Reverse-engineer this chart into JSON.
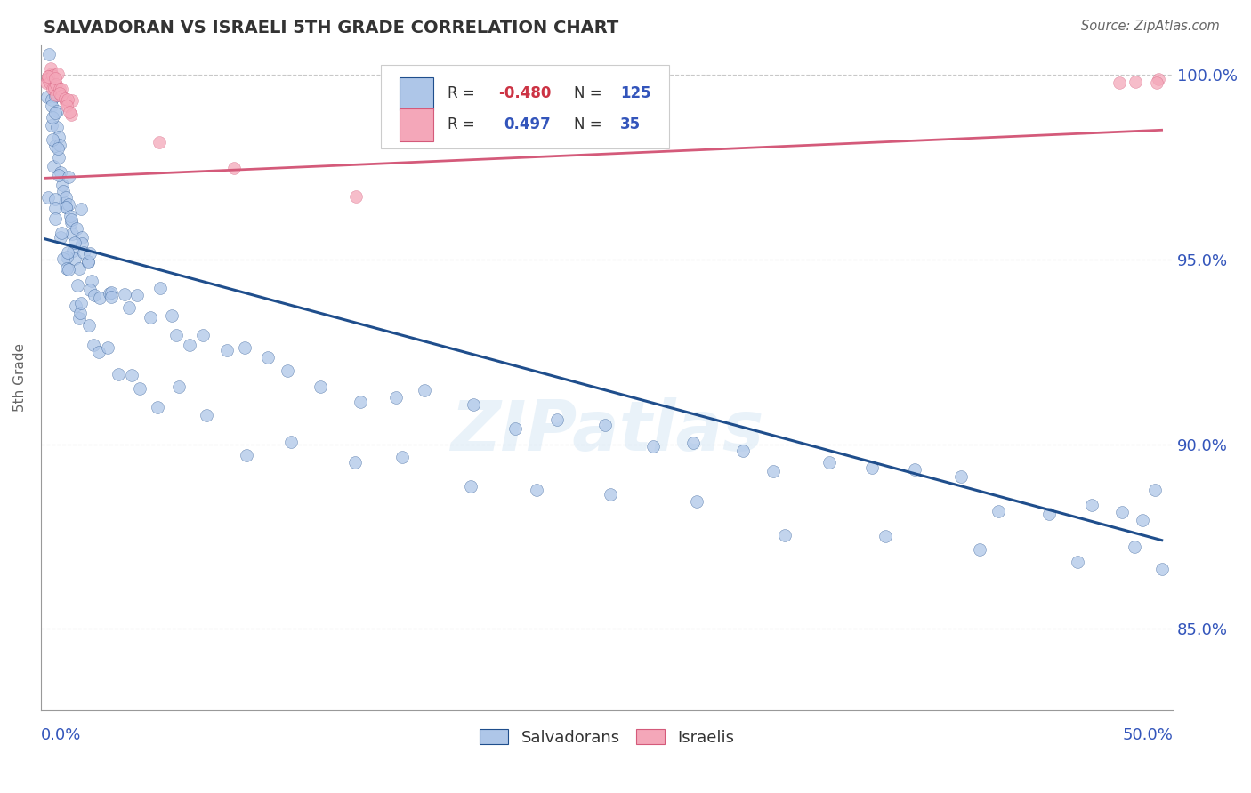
{
  "title": "SALVADORAN VS ISRAELI 5TH GRADE CORRELATION CHART",
  "source": "Source: ZipAtlas.com",
  "ylabel": "5th Grade",
  "ylim": [
    0.828,
    1.008
  ],
  "xlim": [
    -0.002,
    0.505
  ],
  "yticks": [
    0.85,
    0.9,
    0.95,
    1.0
  ],
  "ytick_labels": [
    "85.0%",
    "90.0%",
    "95.0%",
    "100.0%"
  ],
  "blue_color": "#aec6e8",
  "pink_color": "#f4a7b9",
  "blue_line_color": "#1f4e8c",
  "pink_line_color": "#d45a7a",
  "blue_trend_x": [
    0.0,
    0.5
  ],
  "blue_trend_y": [
    0.9555,
    0.874
  ],
  "pink_trend_x": [
    0.0,
    0.5
  ],
  "pink_trend_y": [
    0.972,
    0.985
  ],
  "blue_scatter_x": [
    0.001,
    0.001,
    0.002,
    0.002,
    0.003,
    0.003,
    0.003,
    0.004,
    0.004,
    0.005,
    0.005,
    0.005,
    0.006,
    0.006,
    0.006,
    0.007,
    0.007,
    0.007,
    0.008,
    0.008,
    0.008,
    0.009,
    0.009,
    0.01,
    0.01,
    0.01,
    0.011,
    0.011,
    0.012,
    0.012,
    0.013,
    0.013,
    0.014,
    0.014,
    0.015,
    0.015,
    0.016,
    0.016,
    0.017,
    0.017,
    0.018,
    0.019,
    0.02,
    0.021,
    0.022,
    0.023,
    0.025,
    0.027,
    0.029,
    0.032,
    0.035,
    0.038,
    0.042,
    0.046,
    0.05,
    0.055,
    0.06,
    0.065,
    0.07,
    0.08,
    0.09,
    0.1,
    0.11,
    0.125,
    0.14,
    0.155,
    0.17,
    0.19,
    0.21,
    0.23,
    0.25,
    0.27,
    0.29,
    0.31,
    0.33,
    0.35,
    0.37,
    0.39,
    0.41,
    0.43,
    0.45,
    0.468,
    0.48,
    0.492,
    0.498,
    0.002,
    0.003,
    0.004,
    0.005,
    0.006,
    0.007,
    0.008,
    0.009,
    0.01,
    0.011,
    0.012,
    0.013,
    0.014,
    0.015,
    0.016,
    0.018,
    0.02,
    0.022,
    0.025,
    0.028,
    0.032,
    0.036,
    0.042,
    0.05,
    0.06,
    0.075,
    0.09,
    0.11,
    0.135,
    0.16,
    0.19,
    0.22,
    0.255,
    0.29,
    0.33,
    0.375,
    0.42,
    0.46,
    0.49,
    0.5
  ],
  "blue_scatter_y": [
    0.999,
    0.997,
    0.995,
    0.994,
    0.993,
    0.991,
    0.99,
    0.989,
    0.987,
    0.986,
    0.985,
    0.983,
    0.982,
    0.98,
    0.979,
    0.977,
    0.976,
    0.975,
    0.973,
    0.972,
    0.97,
    0.969,
    0.968,
    0.967,
    0.966,
    0.964,
    0.963,
    0.962,
    0.961,
    0.96,
    0.959,
    0.958,
    0.957,
    0.956,
    0.954,
    0.953,
    0.952,
    0.951,
    0.95,
    0.949,
    0.948,
    0.947,
    0.946,
    0.945,
    0.944,
    0.943,
    0.942,
    0.941,
    0.94,
    0.939,
    0.938,
    0.937,
    0.936,
    0.935,
    0.934,
    0.933,
    0.932,
    0.93,
    0.928,
    0.926,
    0.924,
    0.922,
    0.92,
    0.918,
    0.916,
    0.914,
    0.912,
    0.91,
    0.908,
    0.906,
    0.904,
    0.902,
    0.9,
    0.898,
    0.896,
    0.894,
    0.892,
    0.89,
    0.888,
    0.886,
    0.884,
    0.882,
    0.88,
    0.878,
    0.876,
    0.965,
    0.963,
    0.961,
    0.959,
    0.957,
    0.955,
    0.953,
    0.951,
    0.949,
    0.947,
    0.945,
    0.943,
    0.941,
    0.939,
    0.937,
    0.935,
    0.932,
    0.93,
    0.927,
    0.924,
    0.921,
    0.918,
    0.915,
    0.912,
    0.909,
    0.906,
    0.903,
    0.9,
    0.897,
    0.894,
    0.891,
    0.888,
    0.885,
    0.882,
    0.879,
    0.876,
    0.873,
    0.87,
    0.867,
    0.865
  ],
  "pink_scatter_x": [
    0.001,
    0.001,
    0.001,
    0.002,
    0.002,
    0.002,
    0.003,
    0.003,
    0.003,
    0.004,
    0.004,
    0.004,
    0.005,
    0.005,
    0.005,
    0.006,
    0.006,
    0.007,
    0.007,
    0.008,
    0.008,
    0.009,
    0.009,
    0.01,
    0.01,
    0.011,
    0.012,
    0.013,
    0.05,
    0.085,
    0.14,
    0.48,
    0.49,
    0.498,
    0.5
  ],
  "pink_scatter_y": [
    1.001,
    0.999,
    0.998,
    1.0,
    0.999,
    0.997,
    1.0,
    0.999,
    0.997,
    0.999,
    0.998,
    0.996,
    0.998,
    0.997,
    0.995,
    0.997,
    0.996,
    0.996,
    0.994,
    0.995,
    0.993,
    0.994,
    0.993,
    0.993,
    0.992,
    0.992,
    0.991,
    0.99,
    0.98,
    0.975,
    0.968,
    0.999,
    0.999,
    0.999,
    0.999
  ],
  "watermark": "ZIPatlas"
}
